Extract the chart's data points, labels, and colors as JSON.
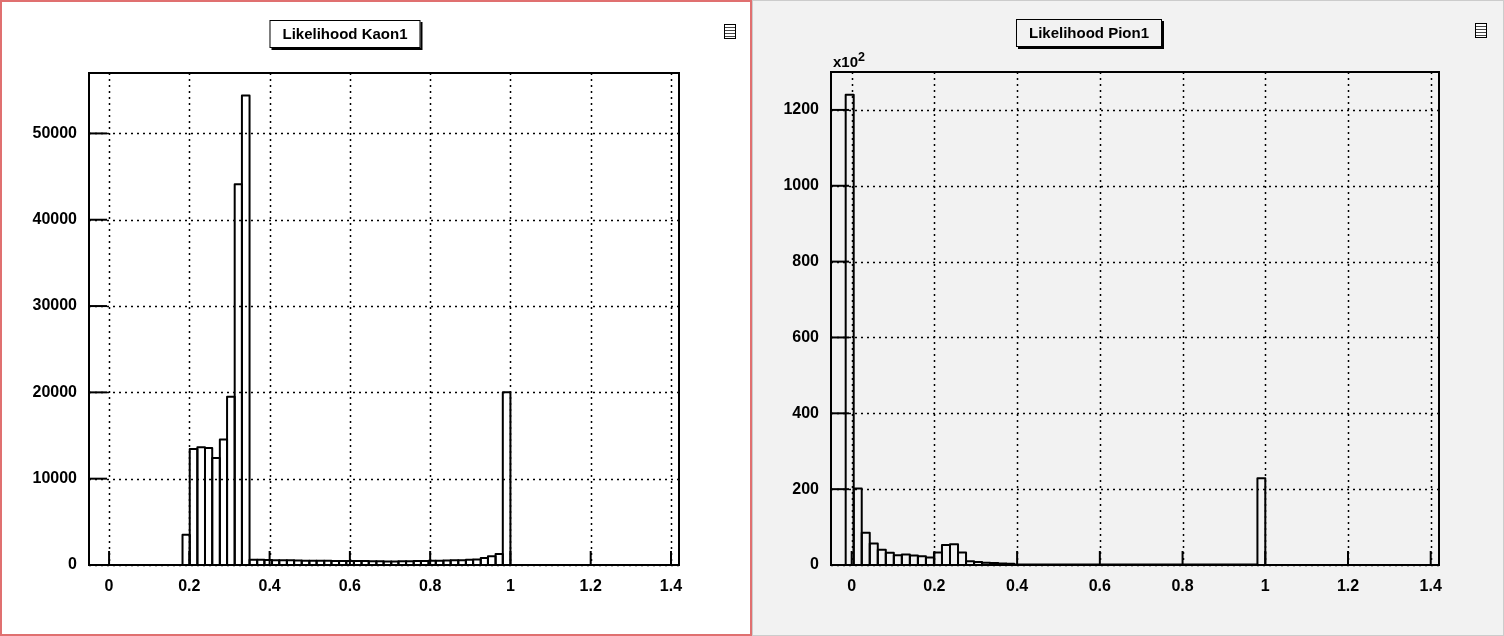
{
  "chart_data": [
    {
      "type": "histogram",
      "title": "Likelihood Kaon1",
      "color": "#000000",
      "bins": [
        0.183,
        0.201,
        0.22,
        0.239,
        0.257,
        0.276,
        0.294,
        0.313,
        0.331,
        0.35,
        0.369,
        0.387,
        0.406,
        0.424,
        0.443,
        0.461,
        0.48,
        0.499,
        0.517,
        0.536,
        0.554,
        0.573,
        0.591,
        0.61,
        0.629,
        0.647,
        0.666,
        0.684,
        0.703,
        0.721,
        0.74,
        0.759,
        0.777,
        0.796,
        0.814,
        0.833,
        0.851,
        0.87,
        0.889,
        0.907,
        0.926,
        0.944,
        0.963,
        0.981,
        1.0
      ],
      "values": [
        3500,
        13450,
        13650,
        13550,
        12400,
        14550,
        19500,
        44100,
        54400,
        600,
        600,
        580,
        560,
        550,
        540,
        520,
        500,
        500,
        480,
        480,
        470,
        460,
        460,
        470,
        450,
        440,
        430,
        420,
        420,
        430,
        440,
        450,
        460,
        480,
        500,
        520,
        540,
        560,
        600,
        650,
        800,
        1000,
        1260,
        20000
      ],
      "xlim": [
        -0.05,
        1.42
      ],
      "xticks": [
        0,
        0.2,
        0.4,
        0.6,
        0.8,
        1,
        1.2,
        1.4
      ],
      "ylim": [
        0,
        57000
      ],
      "yticks": [
        0,
        10000,
        20000,
        30000,
        40000,
        50000
      ],
      "grid": true
    },
    {
      "type": "histogram",
      "title": "Likelihood Pion1",
      "color": "#000000",
      "bins": [
        -0.0145,
        0.0049,
        0.0243,
        0.0437,
        0.0631,
        0.0825,
        0.1019,
        0.1213,
        0.1407,
        0.1601,
        0.1795,
        0.1989,
        0.2183,
        0.2377,
        0.2571,
        0.2765,
        0.2959,
        0.3153,
        0.3347,
        0.3541,
        0.3735,
        0.3929,
        0.981,
        1.0
      ],
      "values": [
        1240,
        202,
        85,
        57,
        40,
        32,
        26,
        28,
        25,
        23,
        20,
        33,
        53,
        55,
        33,
        10,
        8,
        6,
        5,
        4,
        3,
        1,
        229
      ],
      "xlim": [
        -0.05,
        1.42
      ],
      "xticks": [
        0,
        0.2,
        0.4,
        0.6,
        0.8,
        1,
        1.2,
        1.4
      ],
      "ylim": [
        0,
        1300
      ],
      "yticks": [
        0,
        200,
        400,
        600,
        800,
        1000,
        1200
      ],
      "grid": true,
      "annotations": [
        "x10$^{2}$"
      ]
    }
  ]
}
